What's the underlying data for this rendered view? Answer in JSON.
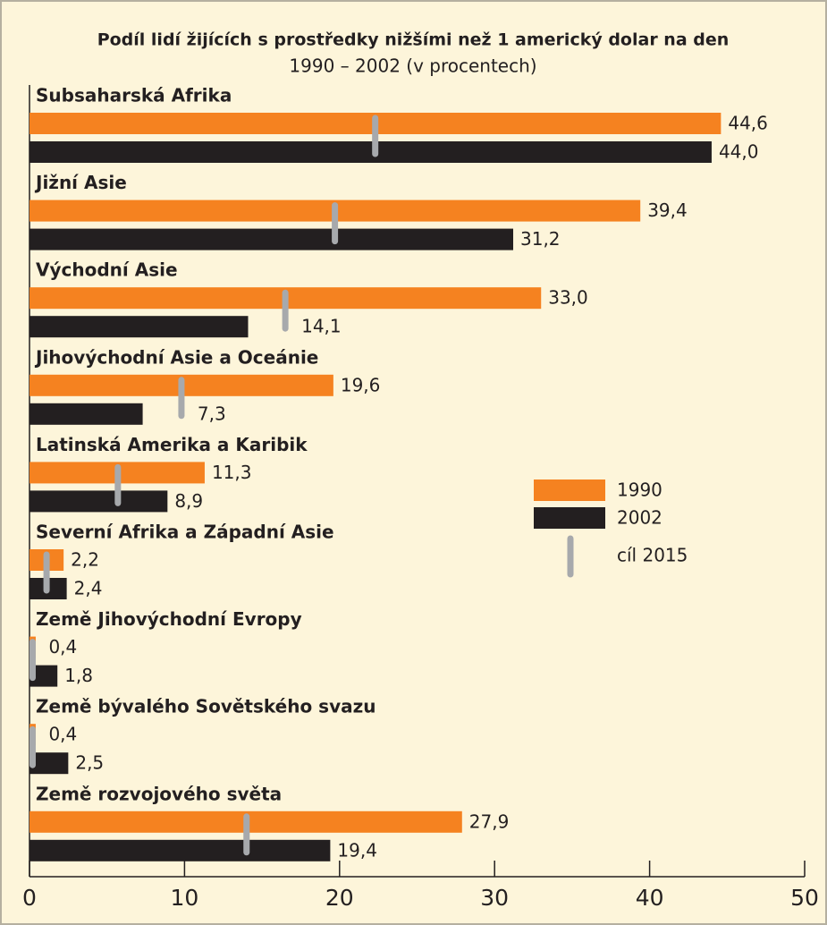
{
  "chart_data": {
    "type": "bar",
    "title": "Podíl lidí žijících s prostředky nižšími než 1 americký dolar na den",
    "subtitle": "1990 – 2002 (v procentech)",
    "categories": [
      "Subsaharská Afrika",
      "Jižní Asie",
      "Východní Asie",
      "Jihovýchodní Asie a Oceánie",
      "Latinská Amerika a Karibik",
      "Severní Afrika a Západní Asie",
      "Země Jihovýchodní Evropy",
      "Země bývalého Sovětského svazu",
      "Země rozvojového světa"
    ],
    "series": [
      {
        "name": "1990",
        "color": "#f58220",
        "values": [
          44.6,
          39.4,
          33.0,
          19.6,
          11.3,
          2.2,
          0.4,
          0.4,
          27.9
        ],
        "value_labels": [
          "44,6",
          "39,4",
          "33,0",
          "19,6",
          "11,3",
          "2,2",
          "0,4",
          "0,4",
          "27,9"
        ]
      },
      {
        "name": "2002",
        "color": "#231f20",
        "values": [
          44.0,
          31.2,
          14.1,
          7.3,
          8.9,
          2.4,
          1.8,
          2.5,
          19.4
        ],
        "value_labels": [
          "44,0",
          "31,2",
          "14,1",
          "7,3",
          "8,9",
          "2,4",
          "1,8",
          "2,5",
          "19,4"
        ]
      },
      {
        "name": "cíl 2015",
        "color": "#a7a9ac",
        "type": "marker",
        "values": [
          22.3,
          19.7,
          16.5,
          9.8,
          5.7,
          1.1,
          0.2,
          0.2,
          14.0
        ]
      }
    ],
    "xlim": [
      0,
      50
    ],
    "xticks": [
      0,
      10,
      20,
      30,
      40,
      50
    ]
  }
}
